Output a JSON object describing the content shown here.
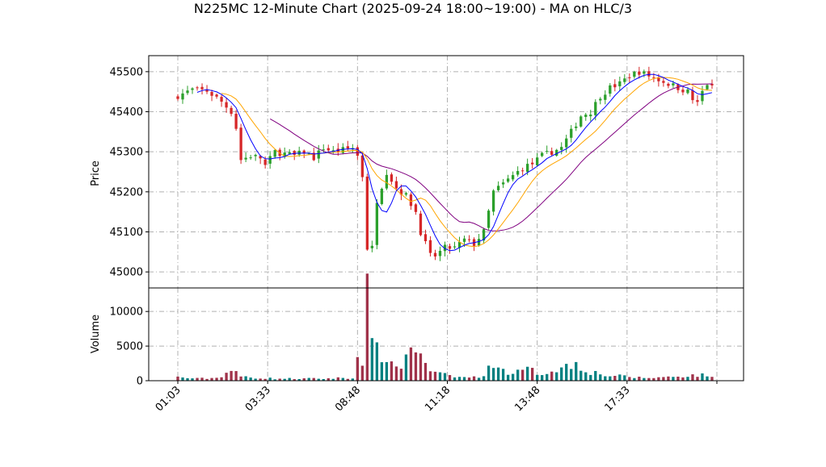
{
  "chart_data": {
    "type": "candlestick",
    "title": "N225MC 12-Minute Chart (2025-09-24 18:00~19:00) - MA on HLC/3",
    "price_panel": {
      "ylabel": "Price",
      "ylim": [
        44960,
        45540
      ],
      "yticks": [
        45000,
        45100,
        45200,
        45300,
        45400,
        45500
      ],
      "ytick_labels": [
        "45000",
        "45100",
        "45200",
        "45300",
        "45400",
        "45500"
      ]
    },
    "volume_panel": {
      "ylabel": "Volume",
      "ylim": [
        0,
        13400
      ],
      "yticks": [
        0,
        5000,
        10000
      ],
      "ytick_labels": [
        "0",
        "5000",
        "10000"
      ]
    },
    "x_axis": {
      "n_bars": 111,
      "tick_index": [
        0,
        18.5,
        37,
        55.5,
        74,
        92.5,
        111
      ],
      "tick_labels": [
        "01:03",
        "03:33",
        "08:48",
        "11:18",
        "13:48",
        "17:33",
        ""
      ]
    },
    "grid": true,
    "colors": {
      "up": "#2ca02c",
      "down": "#d62728",
      "ma_fast": "#0000ff",
      "ma_mid": "#ffa500",
      "ma_slow": "#800080",
      "vol_up": "#008080",
      "vol_down": "#a0324a"
    },
    "close_anchors": [
      [
        0,
        45440
      ],
      [
        3,
        45455
      ],
      [
        6,
        45452
      ],
      [
        9,
        45425
      ],
      [
        11,
        45400
      ],
      [
        12,
        45360
      ],
      [
        13,
        45280
      ],
      [
        15,
        45290
      ],
      [
        17,
        45285
      ],
      [
        18,
        45265
      ],
      [
        20,
        45300
      ],
      [
        22,
        45295
      ],
      [
        24,
        45290
      ],
      [
        26,
        45300
      ],
      [
        28,
        45285
      ],
      [
        30,
        45310
      ],
      [
        32,
        45300
      ],
      [
        34,
        45305
      ],
      [
        36,
        45310
      ],
      [
        37,
        45290
      ],
      [
        38,
        45240
      ],
      [
        39,
        45060
      ],
      [
        40,
        45060
      ],
      [
        41,
        45180
      ],
      [
        43,
        45250
      ],
      [
        45,
        45210
      ],
      [
        47,
        45190
      ],
      [
        49,
        45150
      ],
      [
        50,
        45100
      ],
      [
        52,
        45040
      ],
      [
        53,
        45040
      ],
      [
        55,
        45060
      ],
      [
        57,
        45060
      ],
      [
        59,
        45080
      ],
      [
        61,
        45070
      ],
      [
        63,
        45100
      ],
      [
        65,
        45200
      ],
      [
        67,
        45220
      ],
      [
        69,
        45240
      ],
      [
        71,
        45260
      ],
      [
        73,
        45270
      ],
      [
        75,
        45290
      ],
      [
        77,
        45300
      ],
      [
        79,
        45310
      ],
      [
        81,
        45350
      ],
      [
        83,
        45390
      ],
      [
        85,
        45400
      ],
      [
        87,
        45440
      ],
      [
        89,
        45460
      ],
      [
        91,
        45470
      ],
      [
        93,
        45490
      ],
      [
        95,
        45500
      ],
      [
        97,
        45490
      ],
      [
        99,
        45480
      ],
      [
        101,
        45470
      ],
      [
        103,
        45460
      ],
      [
        105,
        45450
      ],
      [
        106,
        45430
      ],
      [
        107,
        45420
      ],
      [
        108,
        45450
      ],
      [
        109,
        45470
      ],
      [
        110,
        45460
      ]
    ],
    "volume_anchors": [
      [
        0,
        500
      ],
      [
        4,
        300
      ],
      [
        8,
        400
      ],
      [
        11,
        1500
      ],
      [
        13,
        600
      ],
      [
        15,
        500
      ],
      [
        17,
        400
      ],
      [
        20,
        300
      ],
      [
        25,
        300
      ],
      [
        30,
        300
      ],
      [
        34,
        400
      ],
      [
        36,
        300
      ],
      [
        37,
        5500
      ],
      [
        38,
        2600
      ],
      [
        39,
        12700
      ],
      [
        40,
        4500
      ],
      [
        41,
        4200
      ],
      [
        43,
        3800
      ],
      [
        44,
        2000
      ],
      [
        46,
        2400
      ],
      [
        48,
        4600
      ],
      [
        50,
        5000
      ],
      [
        51,
        2000
      ],
      [
        53,
        1100
      ],
      [
        55,
        800
      ],
      [
        58,
        500
      ],
      [
        62,
        500
      ],
      [
        64,
        1600
      ],
      [
        65,
        3000
      ],
      [
        67,
        1400
      ],
      [
        70,
        1200
      ],
      [
        72,
        1600
      ],
      [
        75,
        1000
      ],
      [
        78,
        1800
      ],
      [
        80,
        2000
      ],
      [
        82,
        2600
      ],
      [
        85,
        1300
      ],
      [
        88,
        800
      ],
      [
        92,
        600
      ],
      [
        96,
        400
      ],
      [
        100,
        500
      ],
      [
        104,
        700
      ],
      [
        107,
        800
      ],
      [
        110,
        700
      ]
    ],
    "ma_fast_period": 5,
    "ma_mid_period": 10,
    "ma_slow_period": 20
  }
}
